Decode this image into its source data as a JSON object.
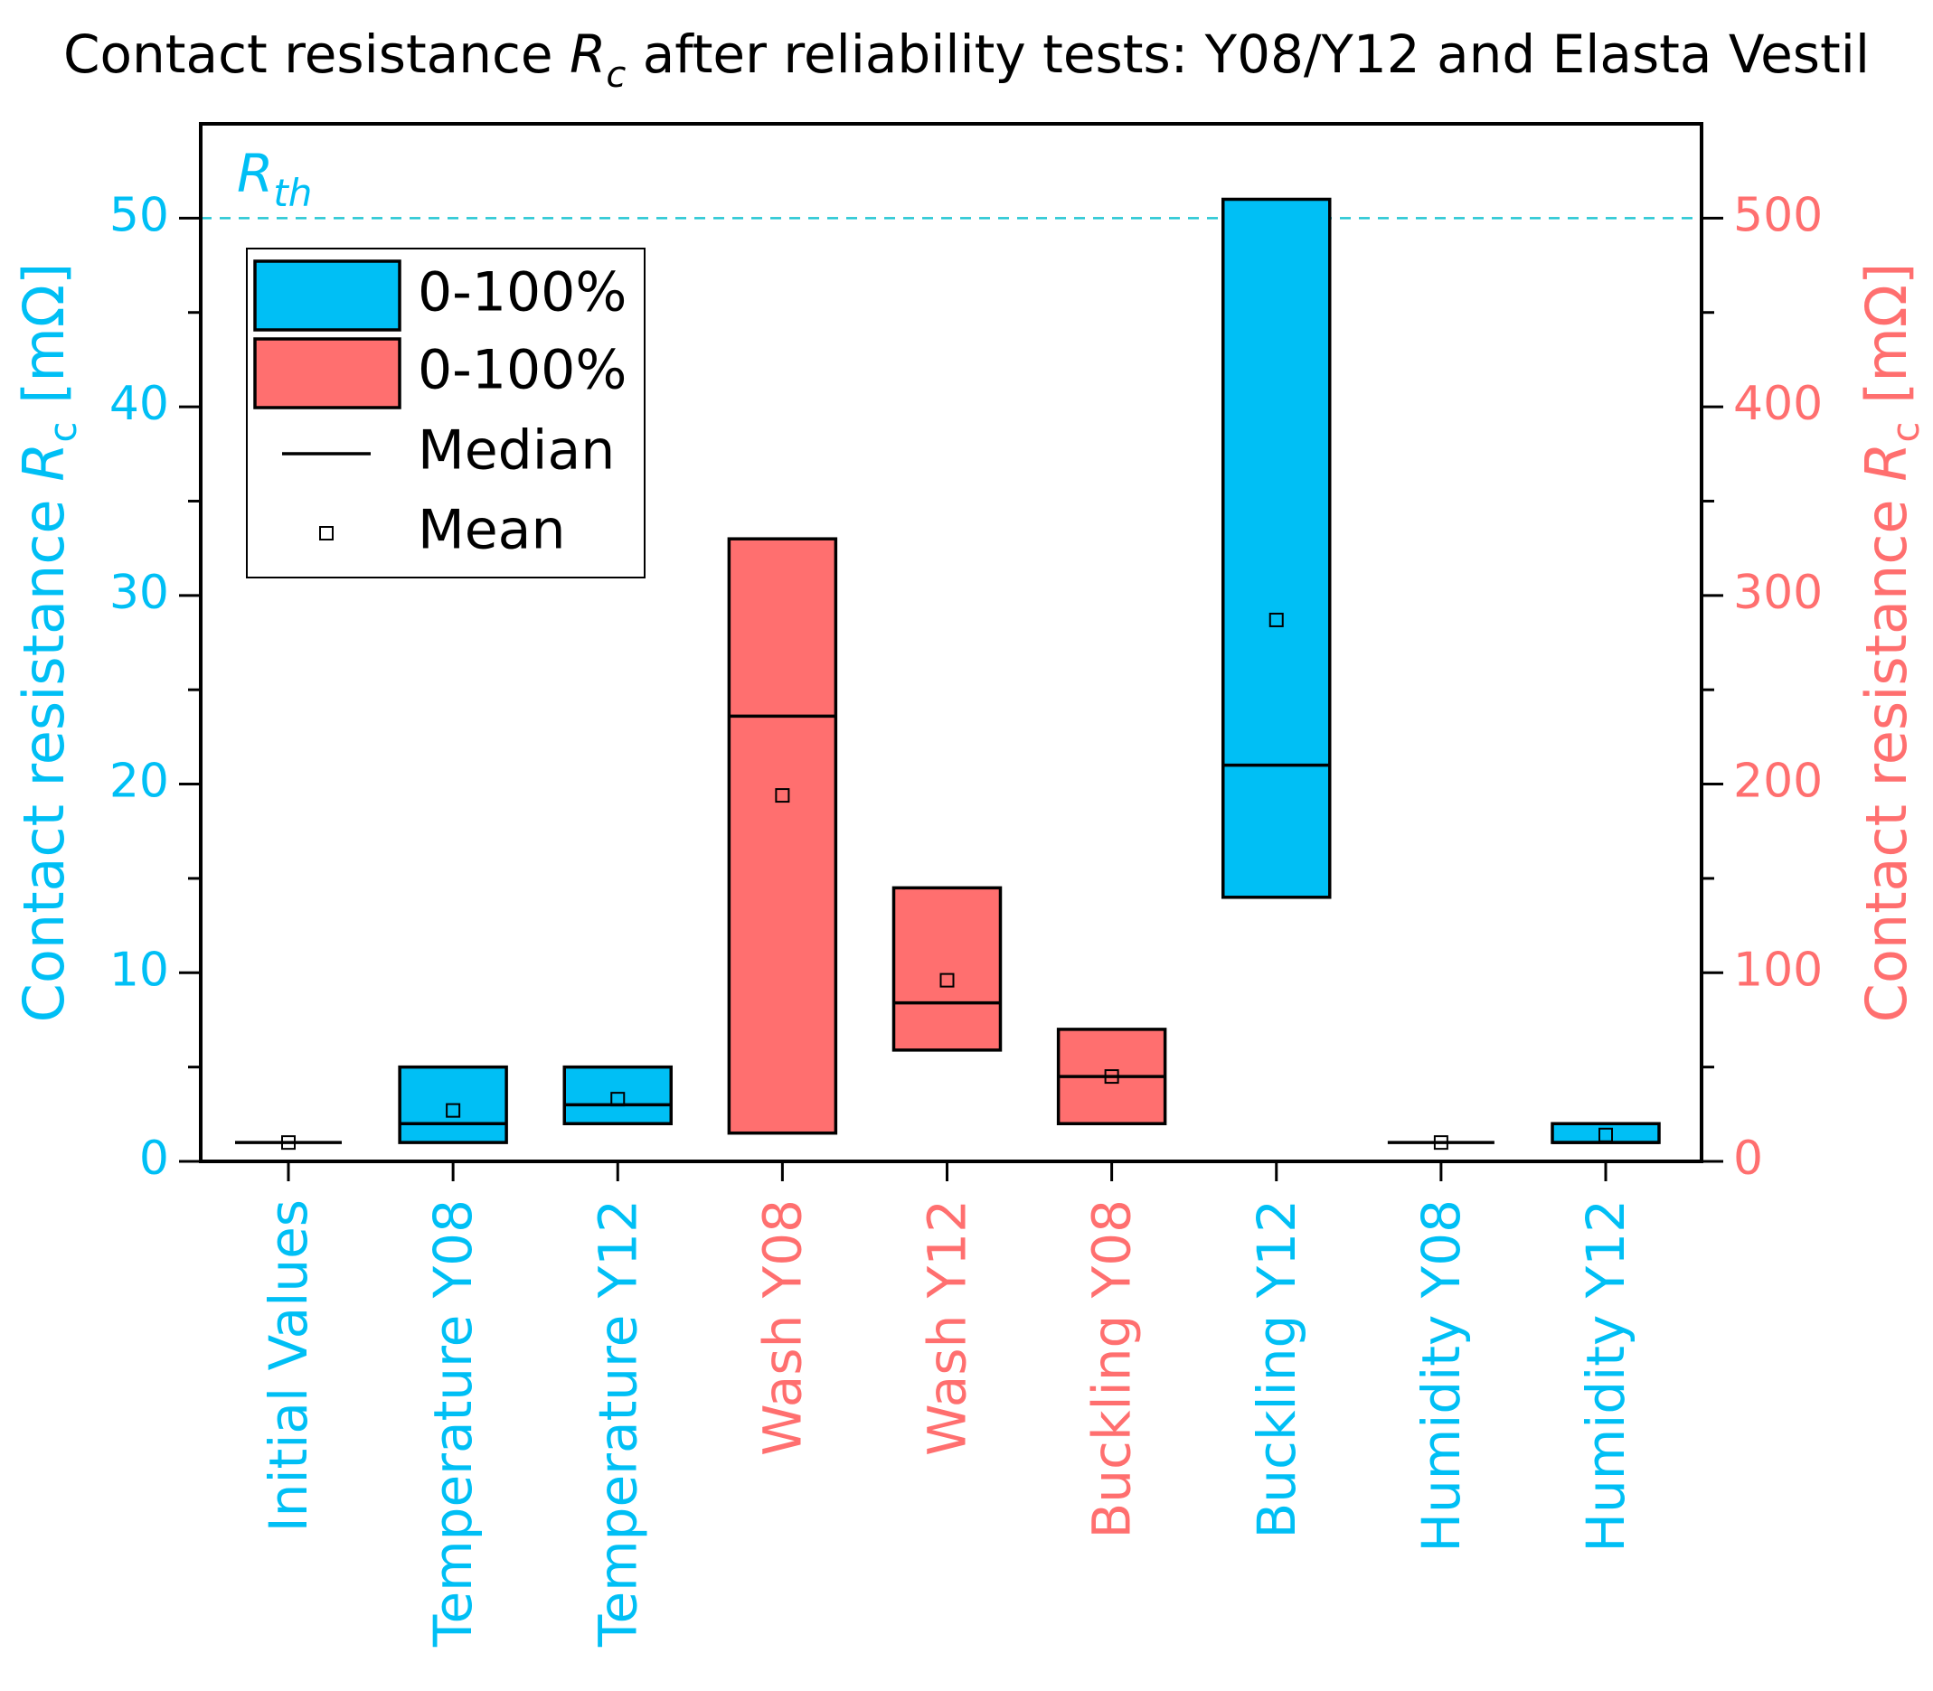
{
  "colors": {
    "left": "#00BFF5",
    "right": "#FF6F6F",
    "threshold": "#26C6D4",
    "box_edge": "#000000"
  },
  "chart_data": {
    "type": "box",
    "title": {
      "prefix": "Contact resistance ",
      "sym": "R",
      "sub": "c",
      "suffix": " after reliability tests: Y08/Y12 and Elasta Vestil"
    },
    "y_left": {
      "label_prefix": "Contact resistance ",
      "label_sym": "R",
      "label_sub": "c",
      "label_suffix": " [mΩ]",
      "range": [
        0,
        55
      ],
      "ticks": [
        0,
        10,
        20,
        30,
        40,
        50
      ],
      "tick_labels": [
        "0",
        "10",
        "20",
        "30",
        "40",
        "50"
      ],
      "minor_ticks": [
        5,
        15,
        25,
        35,
        45
      ]
    },
    "y_right": {
      "label_prefix": "Contact resistance ",
      "label_sym": "R",
      "label_sub": "c",
      "label_suffix": " [mΩ]",
      "range": [
        0,
        550
      ],
      "ticks": [
        0,
        100,
        200,
        300,
        400,
        500
      ],
      "tick_labels": [
        "0",
        "100",
        "200",
        "300",
        "400",
        "500"
      ],
      "minor_ticks": [
        50,
        150,
        250,
        350,
        450
      ]
    },
    "threshold": {
      "label_sym": "R",
      "label_sub": "th",
      "value": 50
    },
    "categories": [
      {
        "label": "Initial Values",
        "axis": "left",
        "min": 1.0,
        "max": 1.0,
        "median": 1.0,
        "mean": 1.0
      },
      {
        "label": "Temperature Y08",
        "axis": "left",
        "min": 1.0,
        "max": 5.0,
        "median": 2.0,
        "mean": 2.7
      },
      {
        "label": "Temperature Y12",
        "axis": "left",
        "min": 2.0,
        "max": 5.0,
        "median": 3.0,
        "mean": 3.3
      },
      {
        "label": "Wash Y08",
        "axis": "right",
        "min": 15,
        "max": 330,
        "median": 236,
        "mean": 194
      },
      {
        "label": "Wash Y12",
        "axis": "right",
        "min": 59,
        "max": 145,
        "median": 84,
        "mean": 96
      },
      {
        "label": "Buckling Y08",
        "axis": "right",
        "min": 20,
        "max": 70,
        "median": 45,
        "mean": 45
      },
      {
        "label": "Buckling Y12",
        "axis": "left",
        "min": 14.0,
        "max": 51.0,
        "median": 21.0,
        "mean": 28.7
      },
      {
        "label": "Humidity Y08",
        "axis": "left",
        "min": 1.0,
        "max": 1.0,
        "median": 1.0,
        "mean": 1.0
      },
      {
        "label": "Humidity Y12",
        "axis": "left",
        "min": 1.0,
        "max": 2.0,
        "median": 1.0,
        "mean": 1.4
      }
    ],
    "legend": [
      {
        "label": "0-100%",
        "kind": "box",
        "color": "#00BFF5"
      },
      {
        "label": "0-100%",
        "kind": "box",
        "color": "#FF6F6F"
      },
      {
        "label": "Median",
        "kind": "line"
      },
      {
        "label": "Mean",
        "kind": "marker"
      }
    ]
  }
}
